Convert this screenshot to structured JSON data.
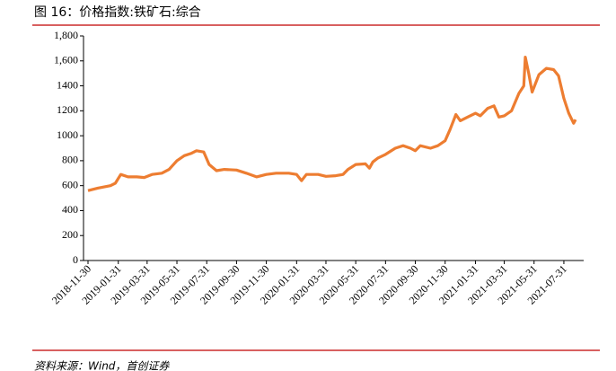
{
  "chart_data": {
    "type": "line",
    "title": "图 16：价格指数:铁矿石:综合",
    "source": "资料来源：Wind，首创证券",
    "x": [
      "2018-11-30",
      "2018-12-20",
      "2019-01-15",
      "2019-01-25",
      "2019-02-05",
      "2019-02-20",
      "2019-03-10",
      "2019-03-25",
      "2019-04-10",
      "2019-04-30",
      "2019-05-15",
      "2019-05-31",
      "2019-06-15",
      "2019-06-30",
      "2019-07-10",
      "2019-07-25",
      "2019-08-05",
      "2019-08-20",
      "2019-09-05",
      "2019-09-30",
      "2019-10-20",
      "2019-11-10",
      "2019-11-30",
      "2019-12-20",
      "2020-01-15",
      "2020-01-31",
      "2020-02-10",
      "2020-02-20",
      "2020-03-15",
      "2020-03-31",
      "2020-04-20",
      "2020-05-05",
      "2020-05-15",
      "2020-05-31",
      "2020-06-20",
      "2020-06-28",
      "2020-07-05",
      "2020-07-15",
      "2020-07-31",
      "2020-08-20",
      "2020-09-05",
      "2020-09-20",
      "2020-09-30",
      "2020-10-10",
      "2020-10-31",
      "2020-11-15",
      "2020-11-30",
      "2020-12-10",
      "2020-12-22",
      "2020-12-31",
      "2021-01-15",
      "2021-01-31",
      "2021-02-10",
      "2021-02-25",
      "2021-03-10",
      "2021-03-20",
      "2021-03-31",
      "2021-04-15",
      "2021-04-30",
      "2021-05-10",
      "2021-05-13",
      "2021-05-20",
      "2021-05-27",
      "2021-06-10",
      "2021-06-25",
      "2021-07-10",
      "2021-07-20",
      "2021-07-31",
      "2021-08-10",
      "2021-08-20",
      "2021-08-24"
    ],
    "series": [
      {
        "name": "价格指数:铁矿石:综合",
        "color": "#ed7d31",
        "values": [
          560,
          580,
          600,
          620,
          690,
          670,
          670,
          665,
          690,
          700,
          730,
          800,
          840,
          860,
          880,
          870,
          770,
          720,
          730,
          725,
          700,
          670,
          690,
          700,
          700,
          690,
          640,
          690,
          690,
          675,
          680,
          690,
          730,
          770,
          775,
          740,
          790,
          820,
          850,
          900,
          920,
          900,
          880,
          920,
          900,
          920,
          960,
          1050,
          1170,
          1120,
          1150,
          1180,
          1160,
          1220,
          1240,
          1150,
          1160,
          1200,
          1340,
          1400,
          1630,
          1500,
          1350,
          1490,
          1540,
          1530,
          1480,
          1300,
          1180,
          1100,
          1130
        ]
      }
    ],
    "xlim": [
      "2018-11-30",
      "2021-08-24"
    ],
    "xticks": [
      "2018-11-30",
      "2019-01-31",
      "2019-03-31",
      "2019-05-31",
      "2019-07-31",
      "2019-09-30",
      "2019-11-30",
      "2020-01-31",
      "2020-03-31",
      "2020-05-31",
      "2020-07-31",
      "2020-09-30",
      "2020-11-30",
      "2021-01-31",
      "2021-03-31",
      "2021-05-31",
      "2021-07-31"
    ],
    "ylim": [
      0,
      1800
    ],
    "yticks": [
      0,
      200,
      400,
      600,
      800,
      1000,
      1200,
      1400,
      {
        "value": 1600,
        "label": "1,600"
      },
      {
        "value": 1800,
        "label": "1,800"
      }
    ]
  }
}
